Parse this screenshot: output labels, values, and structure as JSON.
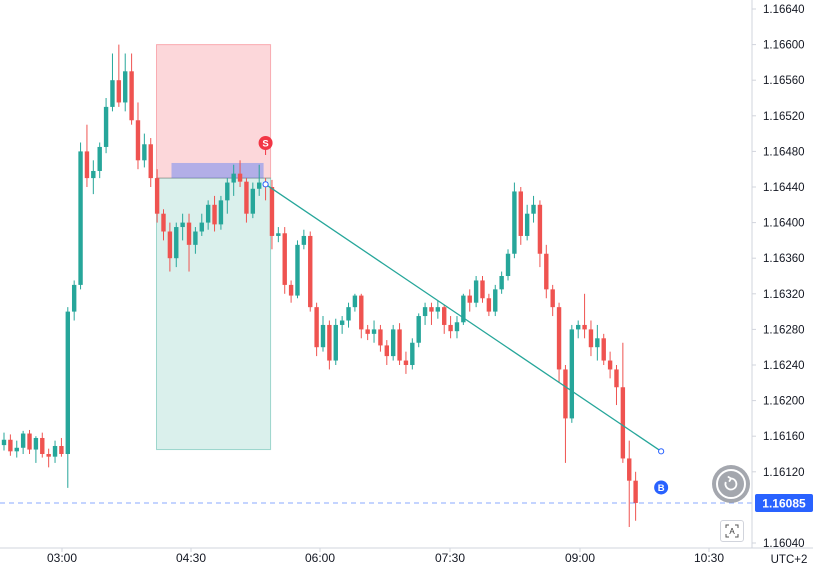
{
  "chart_data": {
    "type": "candlestick",
    "symbol_price_current": "1.16085",
    "timezone": "UTC+2",
    "x_ticks": [
      "03:00",
      "04:30",
      "06:00",
      "07:30",
      "09:00",
      "10:30"
    ],
    "y_ticks": [
      "1.16640",
      "1.16600",
      "1.16560",
      "1.16520",
      "1.16480",
      "1.16440",
      "1.16400",
      "1.16360",
      "1.16320",
      "1.16280",
      "1.16240",
      "1.16200",
      "1.16160",
      "1.16120",
      "1.16085",
      "1.16040"
    ],
    "ylim": [
      1.16028,
      1.1665
    ],
    "colors": {
      "up": "#26a69a",
      "down": "#ef5350",
      "price_line": "#2962ff",
      "trend_line": "#26a69a"
    },
    "candles": [
      [
        1.1615,
        1.16164,
        1.16144,
        1.16156
      ],
      [
        1.16156,
        1.16162,
        1.16138,
        1.16143
      ],
      [
        1.16143,
        1.16155,
        1.16136,
        1.16147
      ],
      [
        1.16147,
        1.16166,
        1.1614,
        1.16163
      ],
      [
        1.16163,
        1.16167,
        1.1614,
        1.16145
      ],
      [
        1.16145,
        1.1616,
        1.1613,
        1.16158
      ],
      [
        1.16158,
        1.16164,
        1.16136,
        1.1614
      ],
      [
        1.1614,
        1.16146,
        1.16125,
        1.16137
      ],
      [
        1.16137,
        1.16155,
        1.1613,
        1.16149
      ],
      [
        1.16149,
        1.16158,
        1.16137,
        1.1614
      ],
      [
        1.1614,
        1.16305,
        1.16102,
        1.163
      ],
      [
        1.163,
        1.16335,
        1.1629,
        1.1633
      ],
      [
        1.1633,
        1.1649,
        1.16325,
        1.1648
      ],
      [
        1.1648,
        1.1651,
        1.1644,
        1.1645
      ],
      [
        1.1645,
        1.1647,
        1.16432,
        1.16458
      ],
      [
        1.16458,
        1.1649,
        1.1645,
        1.16485
      ],
      [
        1.16485,
        1.1654,
        1.16478,
        1.1653
      ],
      [
        1.1653,
        1.1659,
        1.16525,
        1.1656
      ],
      [
        1.1656,
        1.166,
        1.1653,
        1.16535
      ],
      [
        1.16535,
        1.1659,
        1.16525,
        1.1657
      ],
      [
        1.1657,
        1.1659,
        1.1651,
        1.16515
      ],
      [
        1.16515,
        1.16535,
        1.1646,
        1.1647
      ],
      [
        1.1647,
        1.165,
        1.16462,
        1.16488
      ],
      [
        1.16488,
        1.16495,
        1.1644,
        1.1645
      ],
      [
        1.1645,
        1.1646,
        1.164,
        1.1641
      ],
      [
        1.1641,
        1.16415,
        1.1638,
        1.1639
      ],
      [
        1.1639,
        1.164,
        1.16345,
        1.1636
      ],
      [
        1.1636,
        1.164,
        1.1635,
        1.16395
      ],
      [
        1.16395,
        1.1641,
        1.1638,
        1.164
      ],
      [
        1.164,
        1.1641,
        1.16345,
        1.16375
      ],
      [
        1.16375,
        1.16395,
        1.16365,
        1.1639
      ],
      [
        1.1639,
        1.1641,
        1.16385,
        1.164
      ],
      [
        1.164,
        1.16425,
        1.16392,
        1.1642
      ],
      [
        1.1642,
        1.1643,
        1.1639,
        1.16398
      ],
      [
        1.16398,
        1.1643,
        1.16392,
        1.16425
      ],
      [
        1.16425,
        1.1645,
        1.1641,
        1.16445
      ],
      [
        1.16445,
        1.16465,
        1.1643,
        1.16455
      ],
      [
        1.16455,
        1.1647,
        1.1644,
        1.16446
      ],
      [
        1.16446,
        1.1645,
        1.164,
        1.1641
      ],
      [
        1.1641,
        1.16445,
        1.16405,
        1.16438
      ],
      [
        1.16438,
        1.16465,
        1.1643,
        1.16445
      ],
      [
        1.16445,
        1.1645,
        1.16425,
        1.1644
      ],
      [
        1.1644,
        1.16448,
        1.1637,
        1.16385
      ],
      [
        1.16385,
        1.16395,
        1.16378,
        1.16388
      ],
      [
        1.16388,
        1.16395,
        1.1632,
        1.1633
      ],
      [
        1.1633,
        1.16335,
        1.1631,
        1.16318
      ],
      [
        1.16318,
        1.1638,
        1.16315,
        1.16375
      ],
      [
        1.16375,
        1.16392,
        1.1637,
        1.16385
      ],
      [
        1.16385,
        1.1639,
        1.163,
        1.16305
      ],
      [
        1.16305,
        1.1631,
        1.1625,
        1.1626
      ],
      [
        1.1626,
        1.16295,
        1.16255,
        1.16285
      ],
      [
        1.16285,
        1.1629,
        1.16235,
        1.16245
      ],
      [
        1.16245,
        1.16292,
        1.1624,
        1.16285
      ],
      [
        1.16285,
        1.16295,
        1.16275,
        1.1629
      ],
      [
        1.1629,
        1.1631,
        1.16282,
        1.16305
      ],
      [
        1.16305,
        1.1632,
        1.163,
        1.16318
      ],
      [
        1.16318,
        1.1632,
        1.1627,
        1.1628
      ],
      [
        1.1628,
        1.16285,
        1.16268,
        1.16275
      ],
      [
        1.16275,
        1.1629,
        1.16265,
        1.1628
      ],
      [
        1.1628,
        1.16285,
        1.16255,
        1.16262
      ],
      [
        1.16262,
        1.16268,
        1.1624,
        1.1625
      ],
      [
        1.1625,
        1.16285,
        1.16245,
        1.1628
      ],
      [
        1.1628,
        1.16287,
        1.1624,
        1.16245
      ],
      [
        1.16245,
        1.16255,
        1.1623,
        1.1624
      ],
      [
        1.1624,
        1.1627,
        1.16235,
        1.16265
      ],
      [
        1.16265,
        1.16298,
        1.1626,
        1.16295
      ],
      [
        1.16295,
        1.1631,
        1.16285,
        1.16305
      ],
      [
        1.16305,
        1.1631,
        1.16285,
        1.163
      ],
      [
        1.163,
        1.16312,
        1.16292,
        1.16305
      ],
      [
        1.16305,
        1.16308,
        1.16275,
        1.16285
      ],
      [
        1.16285,
        1.16295,
        1.1627,
        1.16278
      ],
      [
        1.16278,
        1.16295,
        1.1627,
        1.16288
      ],
      [
        1.16288,
        1.1632,
        1.16285,
        1.16318
      ],
      [
        1.16318,
        1.16325,
        1.163,
        1.1631
      ],
      [
        1.1631,
        1.1634,
        1.16305,
        1.16335
      ],
      [
        1.16335,
        1.1634,
        1.1631,
        1.16315
      ],
      [
        1.16315,
        1.1632,
        1.16295,
        1.163
      ],
      [
        1.163,
        1.1633,
        1.16295,
        1.16325
      ],
      [
        1.16325,
        1.16345,
        1.1632,
        1.1634
      ],
      [
        1.1634,
        1.1637,
        1.16335,
        1.16365
      ],
      [
        1.16365,
        1.16445,
        1.1636,
        1.16435
      ],
      [
        1.16435,
        1.1644,
        1.16375,
        1.16385
      ],
      [
        1.16385,
        1.1642,
        1.1638,
        1.1641
      ],
      [
        1.1641,
        1.1643,
        1.164,
        1.1642
      ],
      [
        1.1642,
        1.16425,
        1.1635,
        1.16365
      ],
      [
        1.16365,
        1.16375,
        1.16315,
        1.16325
      ],
      [
        1.16325,
        1.1633,
        1.16295,
        1.16305
      ],
      [
        1.16305,
        1.1631,
        1.1622,
        1.16235
      ],
      [
        1.16235,
        1.1624,
        1.1613,
        1.1618
      ],
      [
        1.1618,
        1.16285,
        1.16175,
        1.1628
      ],
      [
        1.1628,
        1.1629,
        1.1627,
        1.16285
      ],
      [
        1.16285,
        1.1632,
        1.1627,
        1.1628
      ],
      [
        1.1628,
        1.1629,
        1.1625,
        1.1626
      ],
      [
        1.1626,
        1.16285,
        1.16245,
        1.1627
      ],
      [
        1.1627,
        1.16275,
        1.1624,
        1.16245
      ],
      [
        1.16245,
        1.16255,
        1.16225,
        1.16235
      ],
      [
        1.16235,
        1.1624,
        1.16195,
        1.16215
      ],
      [
        1.16215,
        1.16265,
        1.1613,
        1.16135
      ],
      [
        1.16135,
        1.16155,
        1.16058,
        1.1611
      ],
      [
        1.1611,
        1.1612,
        1.16065,
        1.16085
      ]
    ],
    "short_position": {
      "label": "S",
      "start_index": 25,
      "end_index": 41,
      "entry": 1.1645,
      "stop": 1.166,
      "target": 1.16145,
      "entry_band_top": 1.16467
    },
    "trend_line": {
      "start_index": 41,
      "start_value": 1.16443,
      "end_index": 103,
      "end_value": 1.16143
    },
    "buy_marker": {
      "label": "B",
      "index": 103,
      "value": 1.16108
    }
  }
}
